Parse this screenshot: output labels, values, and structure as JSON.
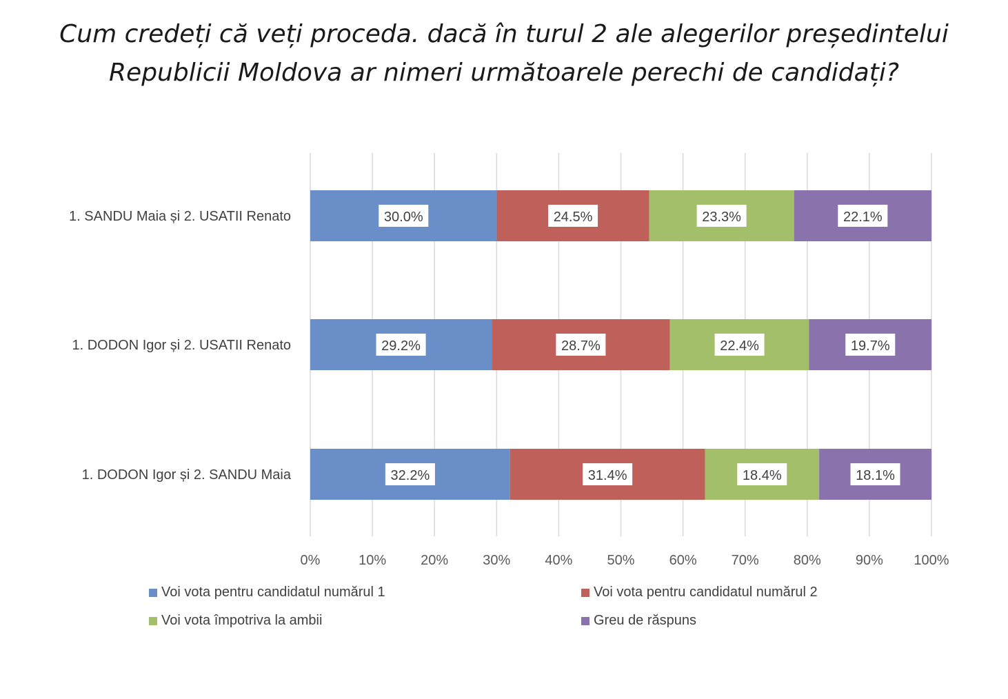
{
  "chart_data": {
    "type": "bar",
    "orientation": "horizontal",
    "stacked": true,
    "title": [
      "Cum credeți că veți proceda. dacă în turul 2 ale alegerilor președintelui",
      "Republicii Moldova ar nimeri următoarele perechi de candidați?"
    ],
    "categories": [
      "1. SANDU Maia și 2. USATII Renato",
      "1. DODON Igor și 2. USATII Renato",
      "1. DODON Igor și 2. SANDU Maia"
    ],
    "series": [
      {
        "name": "Voi vota pentru candidatul numărul  1",
        "color": "#6a8fc8",
        "values": [
          30.0,
          29.2,
          32.2
        ]
      },
      {
        "name": "Voi vota pentru candidatul numărul  2",
        "color": "#c0605a",
        "values": [
          24.5,
          28.7,
          31.4
        ]
      },
      {
        "name": "Voi vota împotriva la ambii",
        "color": "#a3bf6a",
        "values": [
          23.3,
          22.4,
          18.4
        ]
      },
      {
        "name": "Greu de răspuns",
        "color": "#8a72ad",
        "values": [
          22.1,
          19.7,
          18.1
        ]
      }
    ],
    "data_labels": [
      [
        "30.0%",
        "24.5%",
        "23.3%",
        "22.1%"
      ],
      [
        "29.2%",
        "28.7%",
        "22.4%",
        "19.7%"
      ],
      [
        "32.2%",
        "31.4%",
        "18.4%",
        "18.1%"
      ]
    ],
    "xlim": [
      0,
      100
    ],
    "x_ticks": [
      "0%",
      "10%",
      "20%",
      "30%",
      "40%",
      "50%",
      "60%",
      "70%",
      "80%",
      "90%",
      "100%"
    ],
    "grid": true,
    "legend_position": "bottom"
  }
}
